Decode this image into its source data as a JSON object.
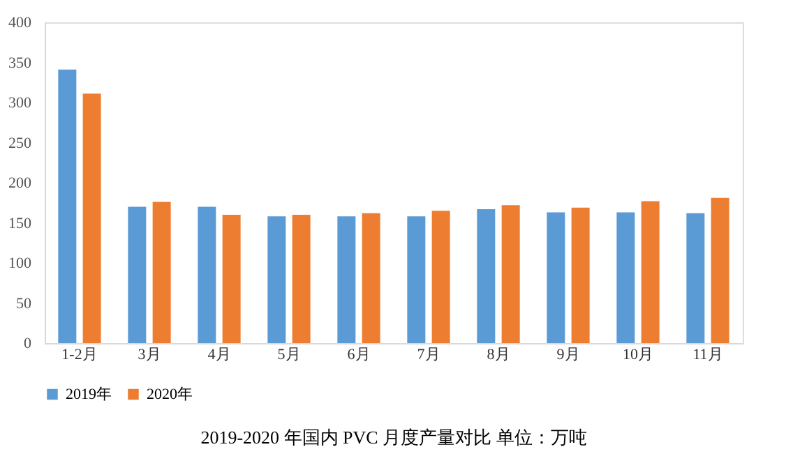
{
  "chart_data": {
    "type": "bar",
    "title": "2019-2020 年国内 PVC 月度产量对比 单位：万吨",
    "categories": [
      "1-2月",
      "3月",
      "4月",
      "5月",
      "6月",
      "7月",
      "8月",
      "9月",
      "10月",
      "11月"
    ],
    "series": [
      {
        "name": "2019年",
        "color": "#5b9bd5",
        "values": [
          341,
          170,
          170,
          158,
          158,
          158,
          167,
          163,
          163,
          162
        ]
      },
      {
        "name": "2020年",
        "color": "#ed7d31",
        "values": [
          311,
          176,
          160,
          160,
          162,
          165,
          172,
          169,
          177,
          181
        ]
      }
    ],
    "ylim": [
      0,
      400
    ],
    "yticks": [
      0,
      50,
      100,
      150,
      200,
      250,
      300,
      350,
      400
    ],
    "grid": false,
    "legend": "bottom"
  }
}
